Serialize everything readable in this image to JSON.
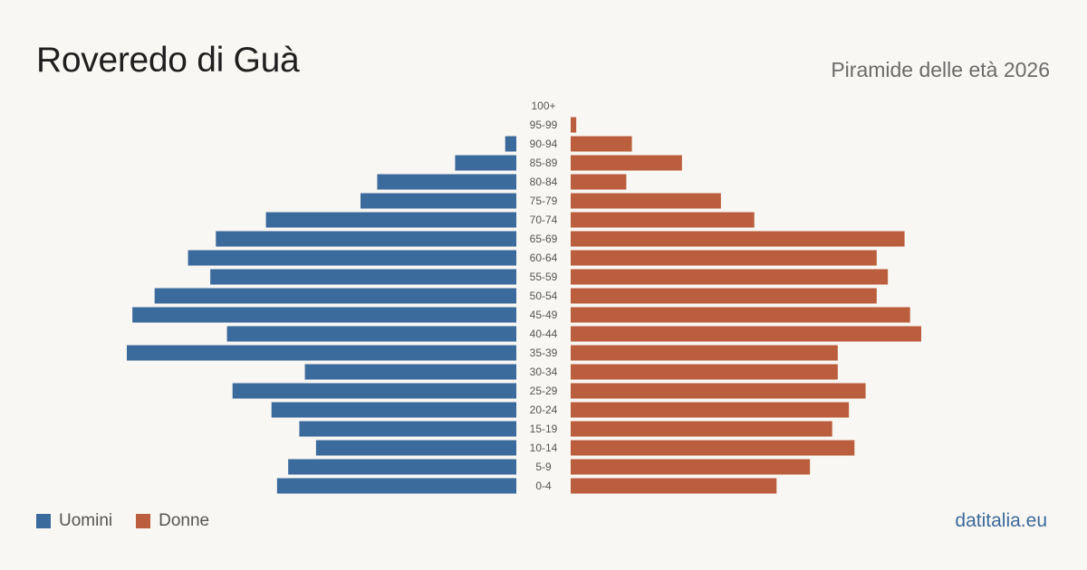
{
  "header": {
    "title": "Roveredo di Guà",
    "subtitle": "Piramide delle età 2026"
  },
  "legend": {
    "men_label": "Uomini",
    "women_label": "Donne"
  },
  "footer": {
    "brand": "datitalia.eu"
  },
  "colors": {
    "men": "#3b6a9c",
    "women": "#bb5e3d"
  },
  "chart_data": {
    "type": "bar",
    "orientation": "horizontal",
    "layout": "population-pyramid",
    "categories": [
      "100+",
      "95-99",
      "90-94",
      "85-89",
      "80-84",
      "75-79",
      "70-74",
      "65-69",
      "60-64",
      "55-59",
      "50-54",
      "45-49",
      "40-44",
      "35-39",
      "30-34",
      "25-29",
      "20-24",
      "15-19",
      "10-14",
      "5-9",
      "0-4"
    ],
    "series": [
      {
        "name": "Uomini",
        "values": [
          0,
          0,
          2,
          11,
          25,
          28,
          45,
          54,
          59,
          55,
          65,
          69,
          52,
          70,
          38,
          51,
          44,
          39,
          36,
          41,
          43
        ]
      },
      {
        "name": "Donne",
        "values": [
          0,
          1,
          11,
          20,
          10,
          27,
          33,
          60,
          55,
          57,
          55,
          61,
          63,
          48,
          48,
          53,
          50,
          47,
          51,
          43,
          37
        ]
      }
    ],
    "xlim": [
      0,
      70
    ],
    "legend_position": "bottom-left",
    "grid": false
  }
}
